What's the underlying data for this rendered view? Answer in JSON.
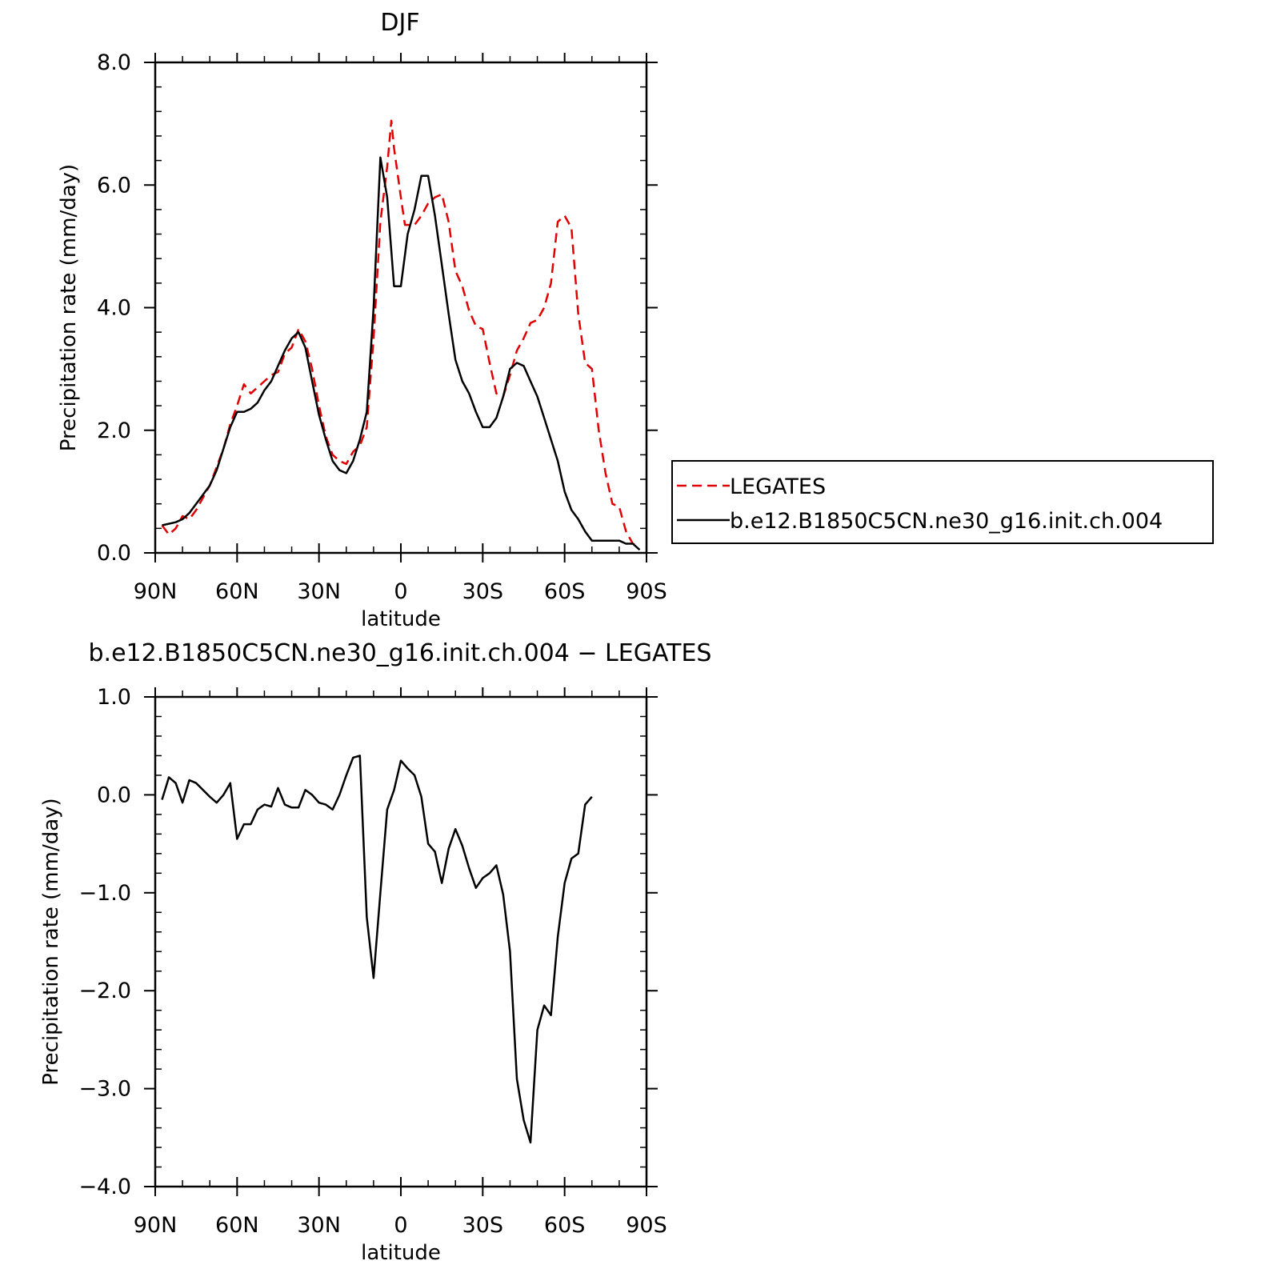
{
  "chart_data": [
    {
      "type": "line",
      "title": "DJF",
      "xlabel": "latitude",
      "ylabel": "Precipitation rate (mm/day)",
      "xlim": [
        90,
        -90
      ],
      "ylim": [
        0,
        8
      ],
      "x_ticks": [
        90,
        60,
        30,
        0,
        -30,
        -60,
        -90
      ],
      "x_tick_labels": [
        "90N",
        "60N",
        "30N",
        "0",
        "30S",
        "60S",
        "90S"
      ],
      "y_ticks": [
        0,
        2,
        4,
        6,
        8
      ],
      "y_tick_labels": [
        "0.0",
        "2.0",
        "4.0",
        "6.0",
        "8.0"
      ],
      "legend_position": "right",
      "series": [
        {
          "name": "LEGATES",
          "color": "#e00000",
          "style": "dashed",
          "points": [
            [
              87.5,
              0.45
            ],
            [
              85,
              0.3
            ],
            [
              82.5,
              0.4
            ],
            [
              80,
              0.6
            ],
            [
              77.5,
              0.55
            ],
            [
              75,
              0.7
            ],
            [
              72.5,
              0.9
            ],
            [
              70,
              1.1
            ],
            [
              67.5,
              1.4
            ],
            [
              65,
              1.7
            ],
            [
              62.5,
              2.1
            ],
            [
              60,
              2.4
            ],
            [
              57.5,
              2.75
            ],
            [
              55,
              2.6
            ],
            [
              52.5,
              2.7
            ],
            [
              50,
              2.8
            ],
            [
              47.5,
              2.9
            ],
            [
              45,
              2.95
            ],
            [
              42.5,
              3.25
            ],
            [
              40,
              3.35
            ],
            [
              37.5,
              3.65
            ],
            [
              35,
              3.45
            ],
            [
              32.5,
              3.0
            ],
            [
              30,
              2.4
            ],
            [
              27.5,
              1.9
            ],
            [
              25,
              1.6
            ],
            [
              22.5,
              1.5
            ],
            [
              20,
              1.45
            ],
            [
              17.5,
              1.65
            ],
            [
              15,
              1.75
            ],
            [
              12.5,
              2.05
            ],
            [
              10,
              3.5
            ],
            [
              7.5,
              5.4
            ],
            [
              5,
              6.3
            ],
            [
              3.5,
              7.05
            ],
            [
              2.5,
              6.6
            ],
            [
              0,
              5.8
            ],
            [
              -1.5,
              5.35
            ],
            [
              -5,
              5.35
            ],
            [
              -7.5,
              5.5
            ],
            [
              -10,
              5.7
            ],
            [
              -12.5,
              5.8
            ],
            [
              -15,
              5.85
            ],
            [
              -17.5,
              5.4
            ],
            [
              -20,
              4.6
            ],
            [
              -22.5,
              4.35
            ],
            [
              -25,
              3.95
            ],
            [
              -27.5,
              3.7
            ],
            [
              -30,
              3.65
            ],
            [
              -32.5,
              3.1
            ],
            [
              -35,
              2.6
            ],
            [
              -37.5,
              2.55
            ],
            [
              -40,
              2.9
            ],
            [
              -42.5,
              3.3
            ],
            [
              -45,
              3.5
            ],
            [
              -47.5,
              3.75
            ],
            [
              -50,
              3.8
            ],
            [
              -52.5,
              4.0
            ],
            [
              -55,
              4.4
            ],
            [
              -57.5,
              5.4
            ],
            [
              -60,
              5.5
            ],
            [
              -62.5,
              5.3
            ],
            [
              -65,
              3.9
            ],
            [
              -67.5,
              3.1
            ],
            [
              -70,
              3.0
            ],
            [
              -72.5,
              2.0
            ],
            [
              -75,
              1.3
            ],
            [
              -77.5,
              0.8
            ],
            [
              -80,
              0.75
            ],
            [
              -82.5,
              0.35
            ],
            [
              -85,
              0.15
            ],
            [
              -87.5,
              0.1
            ]
          ]
        },
        {
          "name": "b.e12.B1850C5CN.ne30_g16.init.ch.004",
          "color": "#000000",
          "style": "solid",
          "points": [
            [
              87.5,
              0.45
            ],
            [
              82.5,
              0.5
            ],
            [
              80,
              0.55
            ],
            [
              77.5,
              0.65
            ],
            [
              75,
              0.8
            ],
            [
              72.5,
              0.95
            ],
            [
              70,
              1.1
            ],
            [
              67.5,
              1.35
            ],
            [
              65,
              1.7
            ],
            [
              62.5,
              2.05
            ],
            [
              60,
              2.3
            ],
            [
              57.5,
              2.3
            ],
            [
              55,
              2.35
            ],
            [
              52.5,
              2.45
            ],
            [
              50,
              2.65
            ],
            [
              47.5,
              2.8
            ],
            [
              45,
              3.05
            ],
            [
              42.5,
              3.3
            ],
            [
              40,
              3.5
            ],
            [
              37.5,
              3.6
            ],
            [
              35,
              3.35
            ],
            [
              32.5,
              2.8
            ],
            [
              30,
              2.25
            ],
            [
              27.5,
              1.85
            ],
            [
              25,
              1.5
            ],
            [
              22.5,
              1.35
            ],
            [
              20,
              1.3
            ],
            [
              17.5,
              1.5
            ],
            [
              15,
              1.85
            ],
            [
              12.5,
              2.3
            ],
            [
              10,
              4.0
            ],
            [
              7.5,
              6.45
            ],
            [
              5,
              5.8
            ],
            [
              2.5,
              4.35
            ],
            [
              0,
              4.35
            ],
            [
              -2.5,
              5.2
            ],
            [
              -5,
              5.6
            ],
            [
              -7.5,
              6.15
            ],
            [
              -10,
              6.15
            ],
            [
              -12.5,
              5.5
            ],
            [
              -15,
              4.7
            ],
            [
              -17.5,
              3.9
            ],
            [
              -20,
              3.15
            ],
            [
              -22.5,
              2.8
            ],
            [
              -25,
              2.6
            ],
            [
              -27.5,
              2.3
            ],
            [
              -30,
              2.05
            ],
            [
              -32.5,
              2.05
            ],
            [
              -35,
              2.2
            ],
            [
              -37.5,
              2.55
            ],
            [
              -40,
              3.0
            ],
            [
              -42.5,
              3.1
            ],
            [
              -45,
              3.05
            ],
            [
              -47.5,
              2.8
            ],
            [
              -50,
              2.55
            ],
            [
              -52.5,
              2.2
            ],
            [
              -55,
              1.85
            ],
            [
              -57.5,
              1.5
            ],
            [
              -60,
              1.0
            ],
            [
              -62.5,
              0.7
            ],
            [
              -65,
              0.55
            ],
            [
              -67.5,
              0.35
            ],
            [
              -70,
              0.2
            ],
            [
              -72.5,
              0.2
            ],
            [
              -75,
              0.2
            ],
            [
              -77.5,
              0.2
            ],
            [
              -80,
              0.2
            ],
            [
              -82.5,
              0.15
            ],
            [
              -85,
              0.15
            ],
            [
              -87.5,
              0.05
            ]
          ]
        }
      ]
    },
    {
      "type": "line",
      "title": "b.e12.B1850C5CN.ne30_g16.init.ch.004 − LEGATES",
      "xlabel": "latitude",
      "ylabel": "Precipitation rate (mm/day)",
      "xlim": [
        90,
        -90
      ],
      "ylim": [
        -4,
        1
      ],
      "x_ticks": [
        90,
        60,
        30,
        0,
        -30,
        -60,
        -90
      ],
      "x_tick_labels": [
        "90N",
        "60N",
        "30N",
        "0",
        "30S",
        "60S",
        "90S"
      ],
      "y_ticks": [
        -4,
        -3,
        -2,
        -1,
        0,
        1
      ],
      "y_tick_labels": [
        "−4.0",
        "−3.0",
        "−2.0",
        "−1.0",
        "0.0",
        "1.0"
      ],
      "series": [
        {
          "color": "#000000",
          "style": "solid",
          "points": [
            [
              87.5,
              -0.05
            ],
            [
              85,
              0.18
            ],
            [
              82.5,
              0.12
            ],
            [
              80,
              -0.08
            ],
            [
              77.5,
              0.15
            ],
            [
              75,
              0.12
            ],
            [
              72.5,
              0.05
            ],
            [
              70,
              -0.02
            ],
            [
              67.5,
              -0.08
            ],
            [
              65,
              0.0
            ],
            [
              62.5,
              0.12
            ],
            [
              60,
              -0.45
            ],
            [
              57.5,
              -0.3
            ],
            [
              55,
              -0.3
            ],
            [
              52.5,
              -0.15
            ],
            [
              50,
              -0.1
            ],
            [
              47.5,
              -0.12
            ],
            [
              45,
              0.07
            ],
            [
              42.5,
              -0.1
            ],
            [
              40,
              -0.13
            ],
            [
              37.5,
              -0.13
            ],
            [
              35,
              0.05
            ],
            [
              32.5,
              0.0
            ],
            [
              30,
              -0.08
            ],
            [
              27.5,
              -0.1
            ],
            [
              25,
              -0.15
            ],
            [
              22.5,
              0.0
            ],
            [
              20,
              0.2
            ],
            [
              17.5,
              0.38
            ],
            [
              15,
              0.4
            ],
            [
              12.5,
              -1.25
            ],
            [
              10,
              -1.87
            ],
            [
              7.5,
              -1.0
            ],
            [
              5,
              -0.15
            ],
            [
              2.5,
              0.05
            ],
            [
              0,
              0.35
            ],
            [
              -2.5,
              0.27
            ],
            [
              -5,
              0.2
            ],
            [
              -7.5,
              -0.02
            ],
            [
              -10,
              -0.5
            ],
            [
              -12.5,
              -0.58
            ],
            [
              -15,
              -0.9
            ],
            [
              -17.5,
              -0.55
            ],
            [
              -20,
              -0.35
            ],
            [
              -22.5,
              -0.52
            ],
            [
              -25,
              -0.75
            ],
            [
              -27.5,
              -0.95
            ],
            [
              -30,
              -0.85
            ],
            [
              -32.5,
              -0.8
            ],
            [
              -35,
              -0.72
            ],
            [
              -37.5,
              -1.02
            ],
            [
              -40,
              -1.6
            ],
            [
              -42.5,
              -2.9
            ],
            [
              -45,
              -3.32
            ],
            [
              -47.5,
              -3.55
            ],
            [
              -50,
              -2.4
            ],
            [
              -52.5,
              -2.15
            ],
            [
              -55,
              -2.25
            ],
            [
              -57.5,
              -1.45
            ],
            [
              -60,
              -0.9
            ],
            [
              -62.5,
              -0.65
            ],
            [
              -65,
              -0.6
            ],
            [
              -67.5,
              -0.1
            ],
            [
              -70,
              -0.02
            ]
          ]
        }
      ]
    }
  ]
}
